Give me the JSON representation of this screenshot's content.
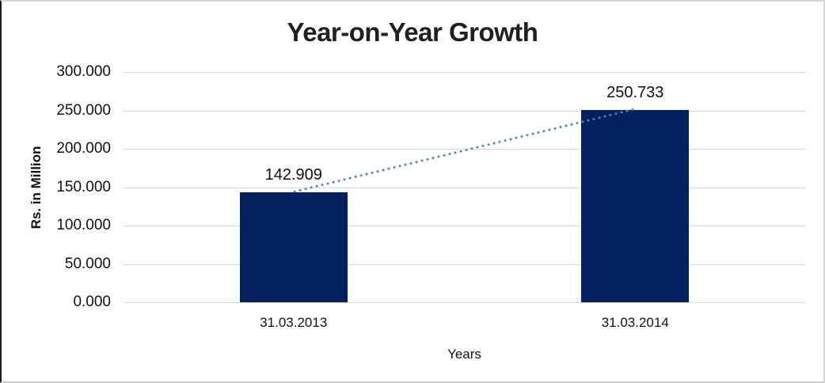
{
  "chart_data": {
    "type": "bar",
    "title": "Year-on-Year Growth",
    "categories": [
      "31.03.2013",
      "31.03.2014"
    ],
    "values": [
      142.909,
      250.733
    ],
    "data_labels": [
      "142.909",
      "250.733"
    ],
    "xlabel": "Years",
    "ylabel": "Rs. in Million",
    "ylim": [
      0,
      300
    ],
    "ytick_step": 50,
    "yticks": [
      "300.000",
      "250.000",
      "200.000",
      "150.000",
      "100.000",
      "50.000",
      "0.000"
    ],
    "grid": true,
    "legend": "none",
    "bar_color": "#03215F",
    "trendline": {
      "style": "dotted",
      "color": "#4F81BD",
      "from_value": 142.909,
      "to_value": 250.733
    }
  }
}
